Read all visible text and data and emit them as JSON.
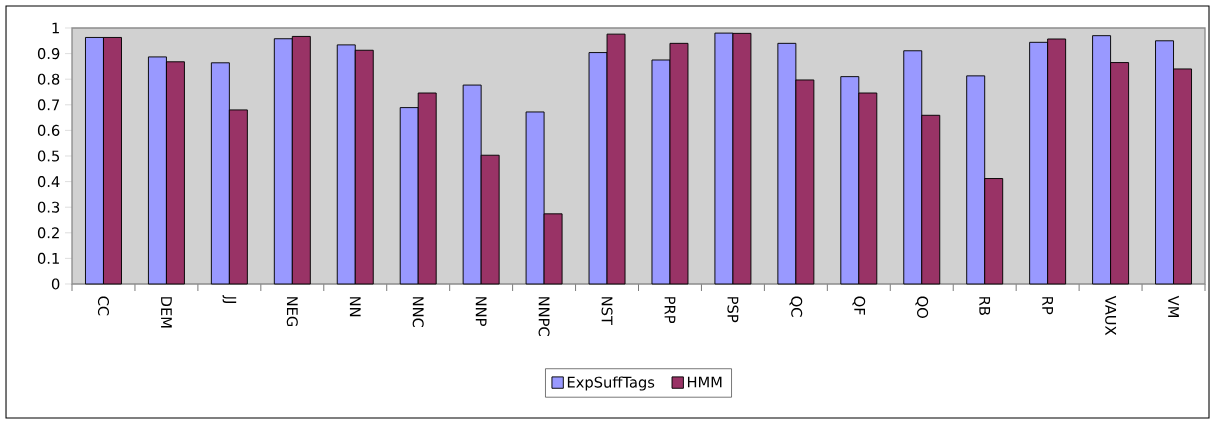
{
  "chart_data": {
    "type": "bar",
    "categories": [
      "CC",
      "DEM",
      "JJ",
      "NEG",
      "NN",
      "NNC",
      "NNP",
      "NNPC",
      "NST",
      "PRP",
      "PSP",
      "QC",
      "QF",
      "QO",
      "RB",
      "RP",
      "VAUX",
      "VM"
    ],
    "series": [
      {
        "name": "ExpSuffTags",
        "color": "#9999ff",
        "values": [
          0.963,
          0.887,
          0.864,
          0.958,
          0.934,
          0.689,
          0.777,
          0.672,
          0.904,
          0.875,
          0.98,
          0.94,
          0.81,
          0.911,
          0.813,
          0.944,
          0.97,
          0.95
        ]
      },
      {
        "name": "HMM",
        "color": "#993366",
        "values": [
          0.963,
          0.868,
          0.68,
          0.967,
          0.913,
          0.746,
          0.503,
          0.274,
          0.976,
          0.94,
          0.979,
          0.797,
          0.746,
          0.659,
          0.412,
          0.957,
          0.865,
          0.84
        ]
      }
    ],
    "ylim": [
      0,
      1
    ],
    "yticks": [
      0,
      0.1,
      0.2,
      0.3,
      0.4,
      0.5,
      0.6,
      0.7,
      0.8,
      0.9,
      1
    ],
    "grid": false,
    "legend": "bottom"
  }
}
